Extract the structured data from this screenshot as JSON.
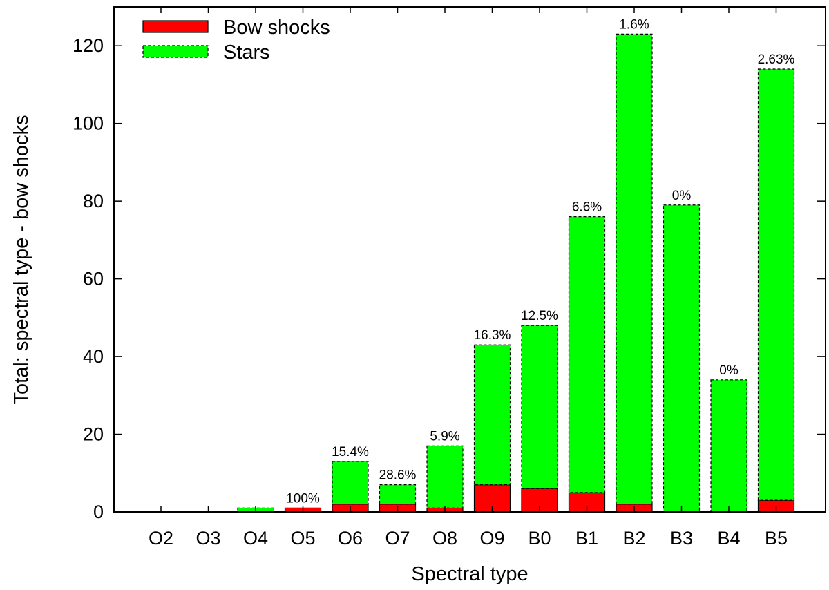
{
  "chart_data": {
    "type": "bar",
    "stacked": true,
    "xlabel": "Spectral type",
    "ylabel": "Total: spectral type - bow shocks",
    "categories": [
      "O2",
      "O3",
      "O4",
      "O5",
      "O6",
      "O7",
      "O8",
      "O9",
      "B0",
      "B1",
      "B2",
      "B3",
      "B4",
      "B5"
    ],
    "series": [
      {
        "name": "Bow shocks",
        "values": [
          0,
          0,
          0,
          1,
          2,
          2,
          1,
          7,
          6,
          5,
          2,
          0,
          0,
          3
        ],
        "color": "#ff0000",
        "border": "solid"
      },
      {
        "name": "Stars",
        "values": [
          0,
          0,
          1,
          0,
          11,
          5,
          16,
          36,
          42,
          71,
          121,
          79,
          34,
          111
        ],
        "color": "#00ff00",
        "border": "dashed"
      }
    ],
    "totals": [
      0,
      0,
      1,
      1,
      13,
      7,
      17,
      43,
      48,
      76,
      123,
      79,
      34,
      114
    ],
    "bar_labels": [
      "",
      "",
      "",
      "100%",
      "15.4%",
      "28.6%",
      "5.9%",
      "16.3%",
      "12.5%",
      "6.6%",
      "1.6%",
      "0%",
      "0%",
      "2.63%"
    ],
    "yticks": [
      0,
      20,
      40,
      60,
      80,
      100,
      120
    ],
    "ylim": [
      0,
      130
    ],
    "grid": false,
    "legend_position": "top-left"
  }
}
